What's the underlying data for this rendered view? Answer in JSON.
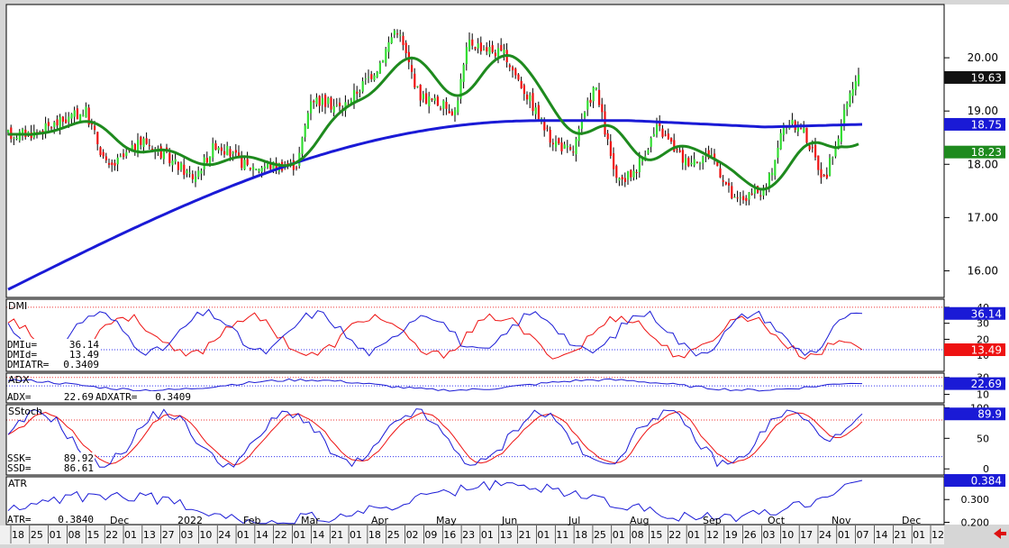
{
  "chart_data": [
    {
      "type": "candlestick",
      "panel": "price",
      "ylim": [
        15.5,
        21.0
      ],
      "y_ticks": [
        {
          "value": 20.0,
          "label": "20.00"
        },
        {
          "value": 19.0,
          "label": "19.00"
        },
        {
          "value": 18.0,
          "label": "18.00"
        },
        {
          "value": 17.0,
          "label": "17.00"
        },
        {
          "value": 16.0,
          "label": "16.00"
        }
      ],
      "last_price": {
        "value": 19.63,
        "label": "19.63"
      },
      "ma_long": {
        "value": 18.75,
        "label": "18.75",
        "color": "#1a1ad6"
      },
      "ma_short": {
        "value": 18.23,
        "label": "18.23",
        "color": "#1e8a1e"
      },
      "up_color": "#33dd33",
      "down_color": "#ee1111"
    },
    {
      "type": "line",
      "panel": "dmi",
      "title": "DMI",
      "ylim": [
        0,
        45
      ],
      "y_ticks": [
        {
          "value": 40,
          "label": "40"
        },
        {
          "value": 30,
          "label": "30"
        },
        {
          "value": 20,
          "label": "20"
        },
        {
          "value": 10,
          "label": "10"
        }
      ],
      "series_last": [
        {
          "value": 36.14,
          "label": "36.14",
          "color": "#1a1ad6"
        },
        {
          "value": 13.49,
          "label": "13.49",
          "color": "#ee1111"
        }
      ],
      "readouts": [
        {
          "label": "DMIu=",
          "value": "36.14"
        },
        {
          "label": "DMId=",
          "value": "13.49"
        },
        {
          "label": "DMIATR=",
          "value": "0.3409"
        }
      ]
    },
    {
      "type": "line",
      "panel": "adx",
      "title": "ADX",
      "ylim": [
        0,
        35
      ],
      "y_ticks": [
        {
          "value": 30,
          "label": "30"
        },
        {
          "value": 20,
          "label": "20"
        },
        {
          "value": 10,
          "label": "10"
        }
      ],
      "series_last": [
        {
          "value": 22.69,
          "label": "22.69",
          "color": "#1a1ad6"
        }
      ],
      "readouts": [
        {
          "label": "ADX=",
          "value": "22.69"
        },
        {
          "label": "ADXATR=",
          "value": "0.3409"
        }
      ]
    },
    {
      "type": "line",
      "panel": "sstoch",
      "title": "SStoch",
      "ylim": [
        -10,
        105
      ],
      "y_ticks": [
        {
          "value": 100,
          "label": "100"
        },
        {
          "value": 50,
          "label": "50"
        },
        {
          "value": 0,
          "label": "0"
        }
      ],
      "series_last": [
        {
          "value": 89.9,
          "label": "89.9",
          "color": "#1a1ad6"
        }
      ],
      "readouts": [
        {
          "label": "SSK=",
          "value": "89.92"
        },
        {
          "label": "SSD=",
          "value": "86.61"
        }
      ]
    },
    {
      "type": "line",
      "panel": "atr",
      "title": "ATR",
      "ylim": [
        0.19,
        0.4
      ],
      "y_ticks": [
        {
          "value": 0.3,
          "label": "0.300"
        },
        {
          "value": 0.2,
          "label": "0.200"
        }
      ],
      "series_last": [
        {
          "value": 0.384,
          "label": "0.384",
          "color": "#1a1ad6"
        }
      ],
      "readouts": [
        {
          "label": "ATR=",
          "value": "0.3840"
        }
      ]
    }
  ],
  "x_axis": {
    "months": [
      "Dec",
      "2022",
      "Feb",
      "Mar",
      "Apr",
      "May",
      "Jun",
      "Jul",
      "Aug",
      "Sep",
      "Oct",
      "Nov",
      "Dec"
    ],
    "days": [
      "18",
      "25",
      "01",
      "08",
      "15",
      "22",
      "01",
      "13",
      "27",
      "03",
      "10",
      "24",
      "01",
      "14",
      "22",
      "01",
      "14",
      "21",
      "01",
      "18",
      "25",
      "02",
      "09",
      "16",
      "23",
      "01",
      "13",
      "21",
      "01",
      "11",
      "18",
      "25",
      "01",
      "08",
      "15",
      "22",
      "01",
      "12",
      "19",
      "26",
      "03",
      "10",
      "17",
      "24",
      "01",
      "07",
      "14",
      "21",
      "01",
      "12"
    ]
  },
  "colors": {
    "background": "#ffffff",
    "frame": "#d6d6d6",
    "axis_bg": "#f0f0f0",
    "ref_red": "#ee3333",
    "ref_blue": "#3333ee",
    "scroll_arrow": "#dd1111"
  }
}
